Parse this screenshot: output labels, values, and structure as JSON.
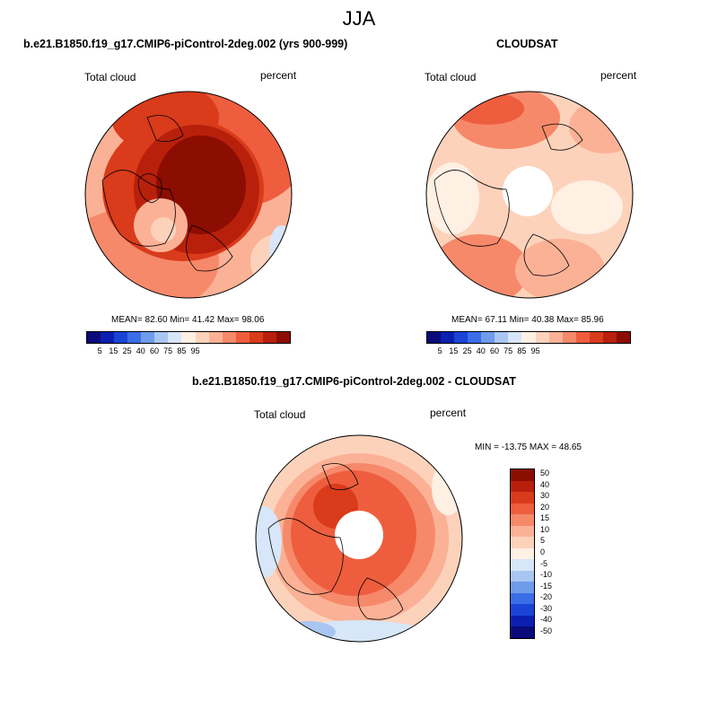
{
  "figure_title": "JJA",
  "panels": {
    "model": {
      "title": "b.e21.B1850.f19_g17.CMIP6-piControl-2deg.002 (yrs 900-999)",
      "variable": "Total cloud",
      "units": "percent",
      "stats": "MEAN=  82.60  Min=  41.42  Max=  98.06"
    },
    "obs": {
      "title": "CLOUDSAT",
      "variable": "Total cloud",
      "units": "percent",
      "stats": "MEAN=  67.11  Min=  40.38  Max=  85.96"
    },
    "diff": {
      "title": "b.e21.B1850.f19_g17.CMIP6-piControl-2deg.002 - CLOUDSAT",
      "variable": "Total cloud",
      "units": "percent",
      "stats": "MIN = -13.75 MAX =  48.65"
    }
  },
  "colorbar_abs": {
    "colors": [
      "#0a0a7a",
      "#0b1fb0",
      "#1a44d6",
      "#3a6ee6",
      "#6f9bec",
      "#a9c6f2",
      "#d7e6f8",
      "#fff0e4",
      "#fdd2bb",
      "#fbb196",
      "#f6896a",
      "#ee5e3e",
      "#d93b1b",
      "#b8200c",
      "#8c0d02"
    ],
    "ticks": [
      "5",
      "15",
      "25",
      "40",
      "60",
      "75",
      "85",
      "95"
    ]
  },
  "colorbar_diff": {
    "colors": [
      "#8c0d02",
      "#b8200c",
      "#d93b1b",
      "#ee5e3e",
      "#f6896a",
      "#fbb196",
      "#fdd2bb",
      "#fff0e4",
      "#d7e6f8",
      "#a9c6f2",
      "#6f9bec",
      "#3a6ee6",
      "#1a44d6",
      "#0b1fb0",
      "#0a0a7a"
    ],
    "ticks": [
      "50",
      "40",
      "30",
      "20",
      "15",
      "10",
      "5",
      "0",
      "-5",
      "-10",
      "-15",
      "-20",
      "-30",
      "-40",
      "-50"
    ]
  }
}
